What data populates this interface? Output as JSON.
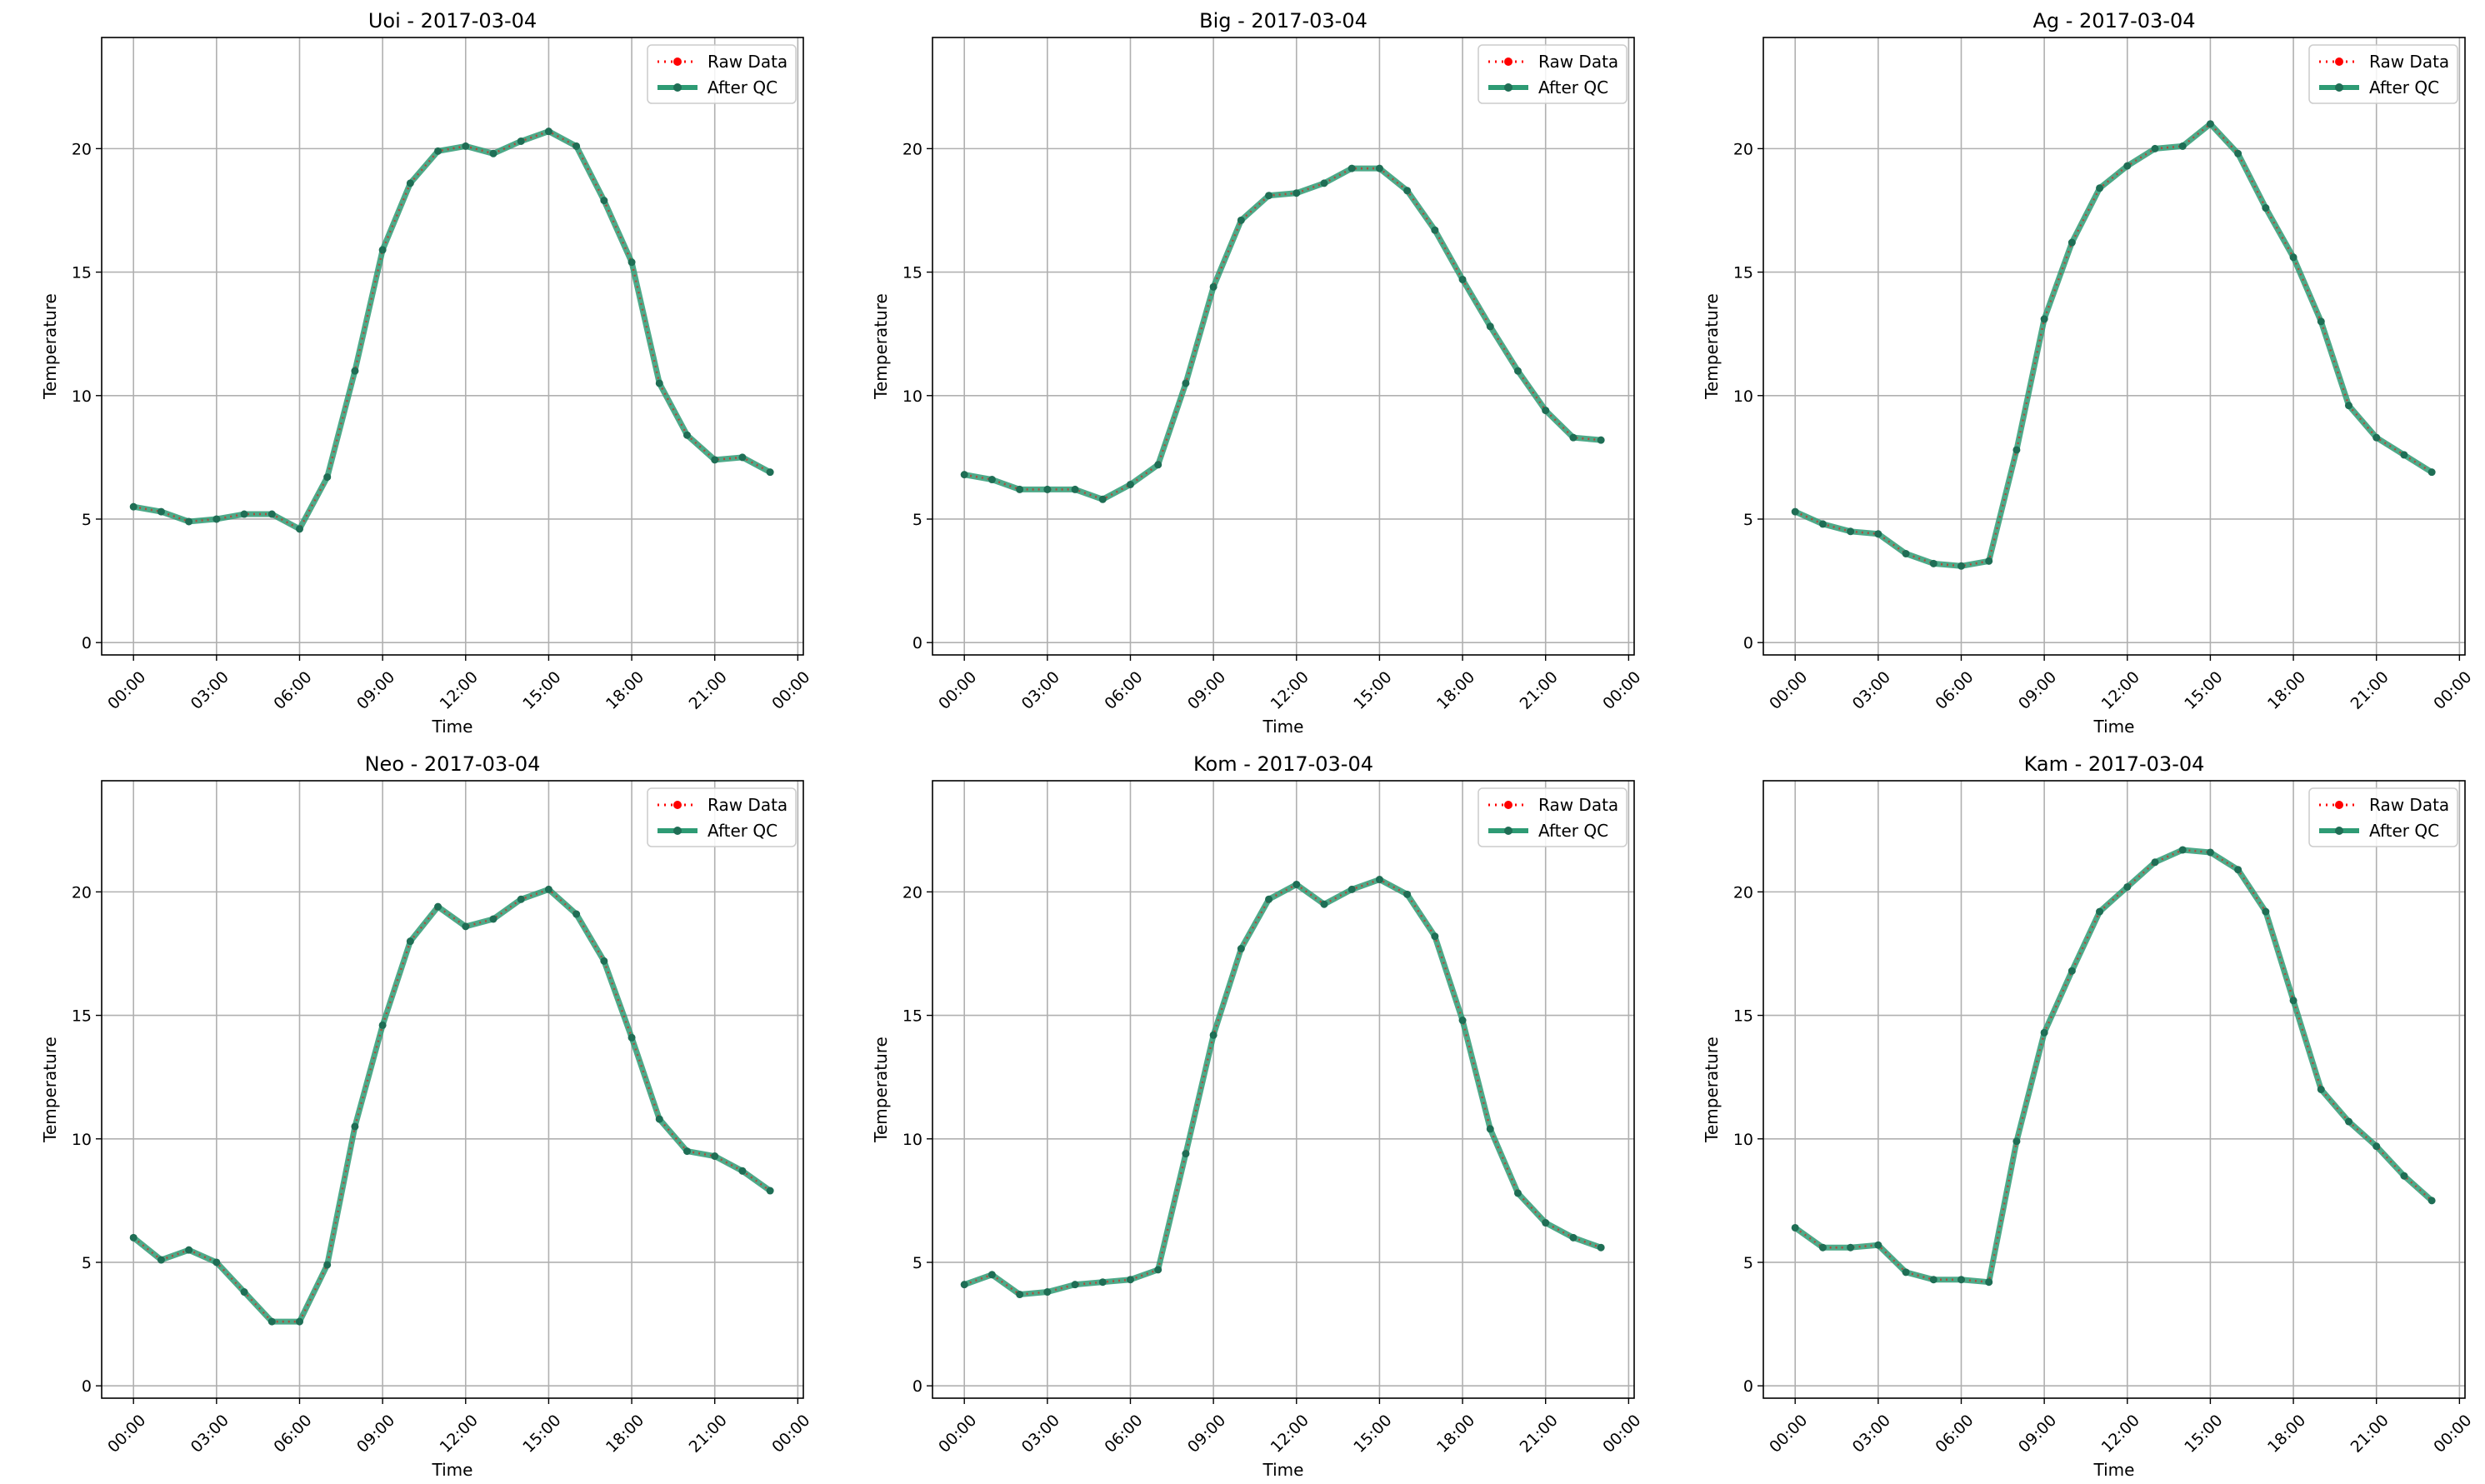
{
  "figure": {
    "background": "#ffffff",
    "grid_color": "#b0b0b0",
    "legend": {
      "position": "top-right",
      "entries": [
        "Raw Data",
        "After QC"
      ]
    },
    "colors": {
      "raw": "#ff0000",
      "qc": "#2e9b74",
      "marker_qc": "#1f6e55"
    }
  },
  "chart_data": [
    {
      "type": "line",
      "title": "Uoi - 2017-03-04",
      "xlabel": "Time",
      "ylabel": "Temperature",
      "x_hours": [
        0,
        1,
        2,
        3,
        4,
        5,
        6,
        7,
        8,
        9,
        10,
        11,
        12,
        13,
        14,
        15,
        16,
        17,
        18,
        19,
        20,
        21,
        22,
        23
      ],
      "xticks": [
        "00:00",
        "03:00",
        "06:00",
        "09:00",
        "12:00",
        "15:00",
        "18:00",
        "21:00",
        "00:00"
      ],
      "yticks": [
        0,
        5,
        10,
        15,
        20
      ],
      "ylim": [
        -0.5,
        24.5
      ],
      "grid": true,
      "series": [
        {
          "name": "Raw Data",
          "style": "dotted-markers",
          "values": [
            5.5,
            5.3,
            4.9,
            5.0,
            5.2,
            5.2,
            4.6,
            6.7,
            11.0,
            15.9,
            18.6,
            19.9,
            20.1,
            19.8,
            20.3,
            20.7,
            20.1,
            17.9,
            15.4,
            10.5,
            8.4,
            7.4,
            7.5,
            6.9
          ]
        },
        {
          "name": "After QC",
          "style": "solid-markers",
          "values": [
            5.5,
            5.3,
            4.9,
            5.0,
            5.2,
            5.2,
            4.6,
            6.7,
            11.0,
            15.9,
            18.6,
            19.9,
            20.1,
            19.8,
            20.3,
            20.7,
            20.1,
            17.9,
            15.4,
            10.5,
            8.4,
            7.4,
            7.5,
            6.9
          ]
        }
      ]
    },
    {
      "type": "line",
      "title": "Big - 2017-03-04",
      "xlabel": "Time",
      "ylabel": "Temperature",
      "x_hours": [
        0,
        1,
        2,
        3,
        4,
        5,
        6,
        7,
        8,
        9,
        10,
        11,
        12,
        13,
        14,
        15,
        16,
        17,
        18,
        19,
        20,
        21,
        22,
        23
      ],
      "xticks": [
        "00:00",
        "03:00",
        "06:00",
        "09:00",
        "12:00",
        "15:00",
        "18:00",
        "21:00",
        "00:00"
      ],
      "yticks": [
        0,
        5,
        10,
        15,
        20
      ],
      "ylim": [
        -0.5,
        24.5
      ],
      "grid": true,
      "series": [
        {
          "name": "Raw Data",
          "style": "dotted-markers",
          "values": [
            6.8,
            6.6,
            6.2,
            6.2,
            6.2,
            5.8,
            6.4,
            7.2,
            10.5,
            14.4,
            17.1,
            18.1,
            18.2,
            18.6,
            19.2,
            19.2,
            18.3,
            16.7,
            14.7,
            12.8,
            11.0,
            9.4,
            8.3,
            8.2
          ]
        },
        {
          "name": "After QC",
          "style": "solid-markers",
          "values": [
            6.8,
            6.6,
            6.2,
            6.2,
            6.2,
            5.8,
            6.4,
            7.2,
            10.5,
            14.4,
            17.1,
            18.1,
            18.2,
            18.6,
            19.2,
            19.2,
            18.3,
            16.7,
            14.7,
            12.8,
            11.0,
            9.4,
            8.3,
            8.2
          ]
        }
      ]
    },
    {
      "type": "line",
      "title": "Ag - 2017-03-04",
      "xlabel": "Time",
      "ylabel": "Temperature",
      "x_hours": [
        0,
        1,
        2,
        3,
        4,
        5,
        6,
        7,
        8,
        9,
        10,
        11,
        12,
        13,
        14,
        15,
        16,
        17,
        18,
        19,
        20,
        21,
        22,
        23
      ],
      "xticks": [
        "00:00",
        "03:00",
        "06:00",
        "09:00",
        "12:00",
        "15:00",
        "18:00",
        "21:00",
        "00:00"
      ],
      "yticks": [
        0,
        5,
        10,
        15,
        20
      ],
      "ylim": [
        -0.5,
        24.5
      ],
      "grid": true,
      "series": [
        {
          "name": "Raw Data",
          "style": "dotted-markers",
          "values": [
            5.3,
            4.8,
            4.5,
            4.4,
            3.6,
            3.2,
            3.1,
            3.3,
            7.8,
            13.1,
            16.2,
            18.4,
            19.3,
            20.0,
            20.1,
            21.0,
            19.8,
            17.6,
            15.6,
            13.0,
            9.6,
            8.3,
            7.6,
            6.9
          ]
        },
        {
          "name": "After QC",
          "style": "solid-markers",
          "values": [
            5.3,
            4.8,
            4.5,
            4.4,
            3.6,
            3.2,
            3.1,
            3.3,
            7.8,
            13.1,
            16.2,
            18.4,
            19.3,
            20.0,
            20.1,
            21.0,
            19.8,
            17.6,
            15.6,
            13.0,
            9.6,
            8.3,
            7.6,
            6.9
          ]
        }
      ]
    },
    {
      "type": "line",
      "title": "Neo - 2017-03-04",
      "xlabel": "Time",
      "ylabel": "Temperature",
      "x_hours": [
        0,
        1,
        2,
        3,
        4,
        5,
        6,
        7,
        8,
        9,
        10,
        11,
        12,
        13,
        14,
        15,
        16,
        17,
        18,
        19,
        20,
        21,
        22,
        23
      ],
      "xticks": [
        "00:00",
        "03:00",
        "06:00",
        "09:00",
        "12:00",
        "15:00",
        "18:00",
        "21:00",
        "00:00"
      ],
      "yticks": [
        0,
        5,
        10,
        15,
        20
      ],
      "ylim": [
        -0.5,
        24.5
      ],
      "grid": true,
      "series": [
        {
          "name": "Raw Data",
          "style": "dotted-markers",
          "values": [
            6.0,
            5.1,
            5.5,
            5.0,
            3.8,
            2.6,
            2.6,
            4.9,
            10.5,
            14.6,
            18.0,
            19.4,
            18.6,
            18.9,
            19.7,
            20.1,
            19.1,
            17.2,
            14.1,
            10.8,
            9.5,
            9.3,
            8.7,
            7.9
          ]
        },
        {
          "name": "After QC",
          "style": "solid-markers",
          "values": [
            6.0,
            5.1,
            5.5,
            5.0,
            3.8,
            2.6,
            2.6,
            4.9,
            10.5,
            14.6,
            18.0,
            19.4,
            18.6,
            18.9,
            19.7,
            20.1,
            19.1,
            17.2,
            14.1,
            10.8,
            9.5,
            9.3,
            8.7,
            7.9
          ]
        }
      ]
    },
    {
      "type": "line",
      "title": "Kom - 2017-03-04",
      "xlabel": "Time",
      "ylabel": "Temperature",
      "x_hours": [
        0,
        1,
        2,
        3,
        4,
        5,
        6,
        7,
        8,
        9,
        10,
        11,
        12,
        13,
        14,
        15,
        16,
        17,
        18,
        19,
        20,
        21,
        22,
        23
      ],
      "xticks": [
        "00:00",
        "03:00",
        "06:00",
        "09:00",
        "12:00",
        "15:00",
        "18:00",
        "21:00",
        "00:00"
      ],
      "yticks": [
        0,
        5,
        10,
        15,
        20
      ],
      "ylim": [
        -0.5,
        24.5
      ],
      "grid": true,
      "series": [
        {
          "name": "Raw Data",
          "style": "dotted-markers",
          "values": [
            4.1,
            4.5,
            3.7,
            3.8,
            4.1,
            4.2,
            4.3,
            4.7,
            9.4,
            14.2,
            17.7,
            19.7,
            20.3,
            19.5,
            20.1,
            20.5,
            19.9,
            18.2,
            14.8,
            10.4,
            7.8,
            6.6,
            6.0,
            5.6
          ]
        },
        {
          "name": "After QC",
          "style": "solid-markers",
          "values": [
            4.1,
            4.5,
            3.7,
            3.8,
            4.1,
            4.2,
            4.3,
            4.7,
            9.4,
            14.2,
            17.7,
            19.7,
            20.3,
            19.5,
            20.1,
            20.5,
            19.9,
            18.2,
            14.8,
            10.4,
            7.8,
            6.6,
            6.0,
            5.6
          ]
        }
      ]
    },
    {
      "type": "line",
      "title": "Kam - 2017-03-04",
      "xlabel": "Time",
      "ylabel": "Temperature",
      "x_hours": [
        0,
        1,
        2,
        3,
        4,
        5,
        6,
        7,
        8,
        9,
        10,
        11,
        12,
        13,
        14,
        15,
        16,
        17,
        18,
        19,
        20,
        21,
        22,
        23
      ],
      "xticks": [
        "00:00",
        "03:00",
        "06:00",
        "09:00",
        "12:00",
        "15:00",
        "18:00",
        "21:00",
        "00:00"
      ],
      "yticks": [
        0,
        5,
        10,
        15,
        20
      ],
      "ylim": [
        -0.5,
        24.5
      ],
      "grid": true,
      "series": [
        {
          "name": "Raw Data",
          "style": "dotted-markers",
          "values": [
            6.4,
            5.6,
            5.6,
            5.7,
            4.6,
            4.3,
            4.3,
            4.2,
            9.9,
            14.3,
            16.8,
            19.2,
            20.2,
            21.2,
            21.7,
            21.6,
            20.9,
            19.2,
            15.6,
            12.0,
            10.7,
            9.7,
            8.5,
            7.5
          ]
        },
        {
          "name": "After QC",
          "style": "solid-markers",
          "values": [
            6.4,
            5.6,
            5.6,
            5.7,
            4.6,
            4.3,
            4.3,
            4.2,
            9.9,
            14.3,
            16.8,
            19.2,
            20.2,
            21.2,
            21.7,
            21.6,
            20.9,
            19.2,
            15.6,
            12.0,
            10.7,
            9.7,
            8.5,
            7.5
          ]
        }
      ]
    }
  ]
}
